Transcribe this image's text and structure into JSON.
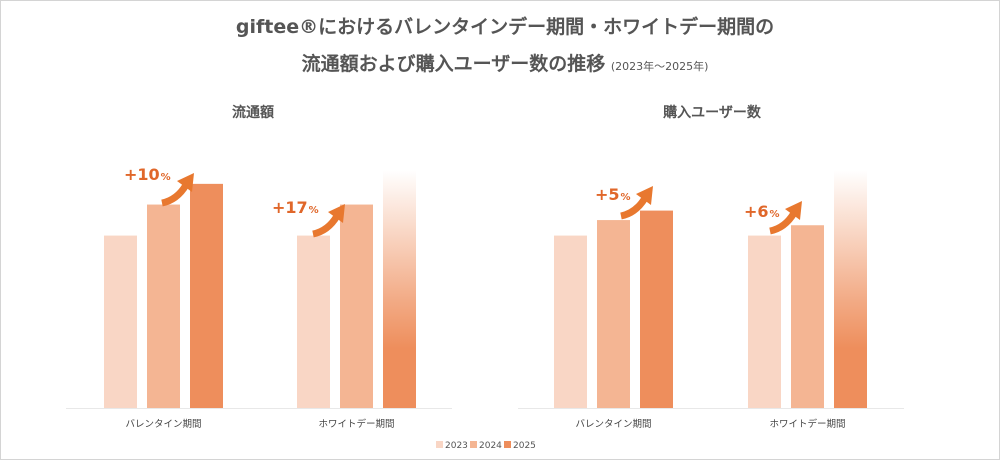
{
  "title": {
    "line1": "giftee®におけるバレンタインデー期間・ホワイトデー期間の",
    "line2_main": "流通額および購入ユーザー数の推移",
    "line2_sub": "(2023年～2025年)"
  },
  "colors": {
    "y2023": "#f9d6c5",
    "y2024": "#f4b593",
    "y2025": "#ee8e5c",
    "arrow": "#e8782f",
    "growth_text": "#e0672a",
    "title_text": "#555555",
    "baseline": "#e8e8e8"
  },
  "legend": [
    "2023",
    "2024",
    "2025"
  ],
  "chart_data": [
    {
      "type": "bar",
      "title": "流通額",
      "categories": [
        "バレンタイン期間",
        "ホワイトデー期間"
      ],
      "series": [
        {
          "name": "2023",
          "values": [
            100,
            100
          ]
        },
        {
          "name": "2024",
          "values": [
            118,
            118
          ]
        },
        {
          "name": "2025",
          "values": [
            130,
            null
          ]
        }
      ],
      "growth_labels": [
        {
          "category": "バレンタイン期間",
          "value": "+10",
          "unit": "%"
        },
        {
          "category": "ホワイトデー期間",
          "value": "+17",
          "unit": "%"
        }
      ],
      "ylim": [
        0,
        145
      ],
      "note": ""
    },
    {
      "type": "bar",
      "title": "購入ユーザー数",
      "categories": [
        "バレンタイン期間",
        "ホワイトデー期間"
      ],
      "series": [
        {
          "name": "2023",
          "values": [
            100,
            100
          ]
        },
        {
          "name": "2024",
          "values": [
            109,
            106
          ]
        },
        {
          "name": "2025",
          "values": [
            114.5,
            null
          ]
        }
      ],
      "growth_labels": [
        {
          "category": "バレンタイン期間",
          "value": "+5",
          "unit": "%"
        },
        {
          "category": "ホワイトデー期間",
          "value": "+6",
          "unit": "%"
        }
      ],
      "ylim": [
        0,
        145
      ],
      "note": ""
    }
  ]
}
